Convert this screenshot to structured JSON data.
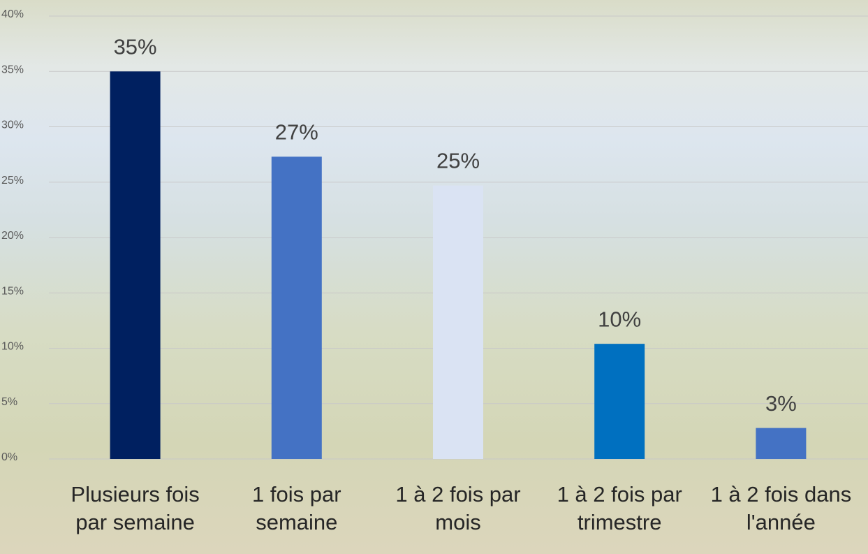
{
  "chart_data": {
    "type": "bar",
    "categories": [
      "Plusieurs fois par semaine",
      "1 fois par semaine",
      "1 à 2 fois par mois",
      "1 à 2 fois par trimestre",
      "1 à 2 fois dans l'année"
    ],
    "values": [
      35,
      27.3,
      24.7,
      10.4,
      2.8
    ],
    "value_labels": [
      "35%",
      "27%",
      "25%",
      "10%",
      "3%"
    ],
    "colors": [
      "#002060",
      "#4472c4",
      "#dae3f3",
      "#0070c0",
      "#4472c4"
    ],
    "ylim": [
      0,
      40
    ],
    "yticks": [
      {
        "value": 0,
        "label": "0%"
      },
      {
        "value": 5,
        "label": "5%"
      },
      {
        "value": 10,
        "label": "10%"
      },
      {
        "value": 15,
        "label": "15%"
      },
      {
        "value": 20,
        "label": "20%"
      },
      {
        "value": 25,
        "label": "25%"
      },
      {
        "value": 30,
        "label": "30%"
      },
      {
        "value": 35,
        "label": "35%"
      },
      {
        "value": 40,
        "label": "40%"
      }
    ],
    "grid": true
  }
}
